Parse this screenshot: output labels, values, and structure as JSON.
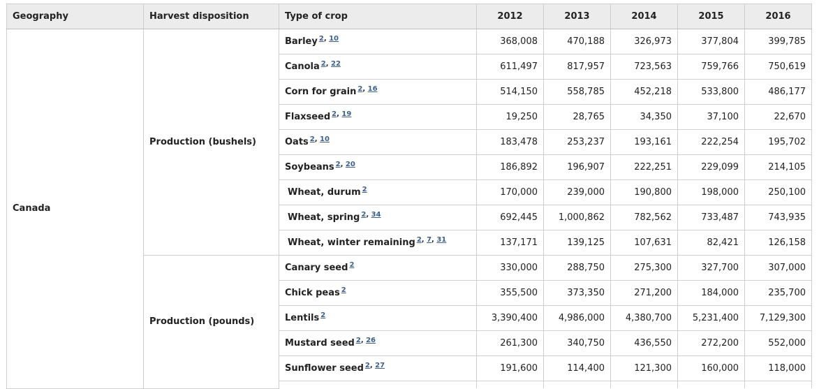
{
  "headers": {
    "geography": "Geography",
    "disposition": "Harvest disposition",
    "crop": "Type of crop",
    "years": [
      "2012",
      "2013",
      "2014",
      "2015",
      "2016"
    ]
  },
  "geography": "Canada",
  "groups": [
    {
      "disposition": "Production (bushels)",
      "rows": [
        {
          "crop": "Barley",
          "notes": [
            "2",
            "10"
          ],
          "values": [
            "368,008",
            "470,188",
            "326,973",
            "377,804",
            "399,785"
          ]
        },
        {
          "crop": "Canola",
          "notes": [
            "2",
            "22"
          ],
          "values": [
            "611,497",
            "817,957",
            "723,563",
            "759,766",
            "750,619"
          ]
        },
        {
          "crop": "Corn for grain",
          "notes": [
            "2",
            "16"
          ],
          "values": [
            "514,150",
            "558,785",
            "452,218",
            "533,800",
            "486,177"
          ]
        },
        {
          "crop": "Flaxseed",
          "notes": [
            "2",
            "19"
          ],
          "values": [
            "19,250",
            "28,765",
            "34,350",
            "37,100",
            "22,670"
          ]
        },
        {
          "crop": "Oats",
          "notes": [
            "2",
            "10"
          ],
          "values": [
            "183,478",
            "253,237",
            "193,161",
            "222,254",
            "195,702"
          ]
        },
        {
          "crop": "Soybeans",
          "notes": [
            "2",
            "20"
          ],
          "values": [
            "186,892",
            "196,907",
            "222,251",
            "229,099",
            "214,105"
          ]
        },
        {
          "crop": "Wheat, durum",
          "notes": [
            "2"
          ],
          "values": [
            "170,000",
            "239,000",
            "190,800",
            "198,000",
            "250,100"
          ]
        },
        {
          "crop": "Wheat, spring",
          "notes": [
            "2",
            "34"
          ],
          "values": [
            "692,445",
            "1,000,862",
            "782,562",
            "733,487",
            "743,935"
          ]
        },
        {
          "crop": "Wheat, winter remaining",
          "notes": [
            "2",
            "7",
            "31"
          ],
          "values": [
            "137,171",
            "139,125",
            "107,631",
            "82,421",
            "126,158"
          ]
        }
      ]
    },
    {
      "disposition": "Production (pounds)",
      "rows": [
        {
          "crop": "Canary seed",
          "notes": [
            "2"
          ],
          "values": [
            "330,000",
            "288,750",
            "275,300",
            "327,700",
            "307,000"
          ]
        },
        {
          "crop": "Chick peas",
          "notes": [
            "2"
          ],
          "values": [
            "355,500",
            "373,350",
            "271,200",
            "184,000",
            "235,700"
          ]
        },
        {
          "crop": "Lentils",
          "notes": [
            "2"
          ],
          "values": [
            "3,390,400",
            "4,986,000",
            "4,380,700",
            "5,231,400",
            "7,129,300"
          ]
        },
        {
          "crop": "Mustard seed",
          "notes": [
            "2",
            "26"
          ],
          "values": [
            "261,300",
            "340,750",
            "436,550",
            "272,200",
            "552,000"
          ]
        },
        {
          "crop": "Sunflower seed",
          "notes": [
            "2",
            "27"
          ],
          "values": [
            "191,600",
            "114,400",
            "121,300",
            "160,000",
            "118,000"
          ]
        }
      ]
    }
  ],
  "colors": {
    "header_bg": "#ececec",
    "border": "#cfcfcf",
    "link": "#3a5f8f"
  }
}
